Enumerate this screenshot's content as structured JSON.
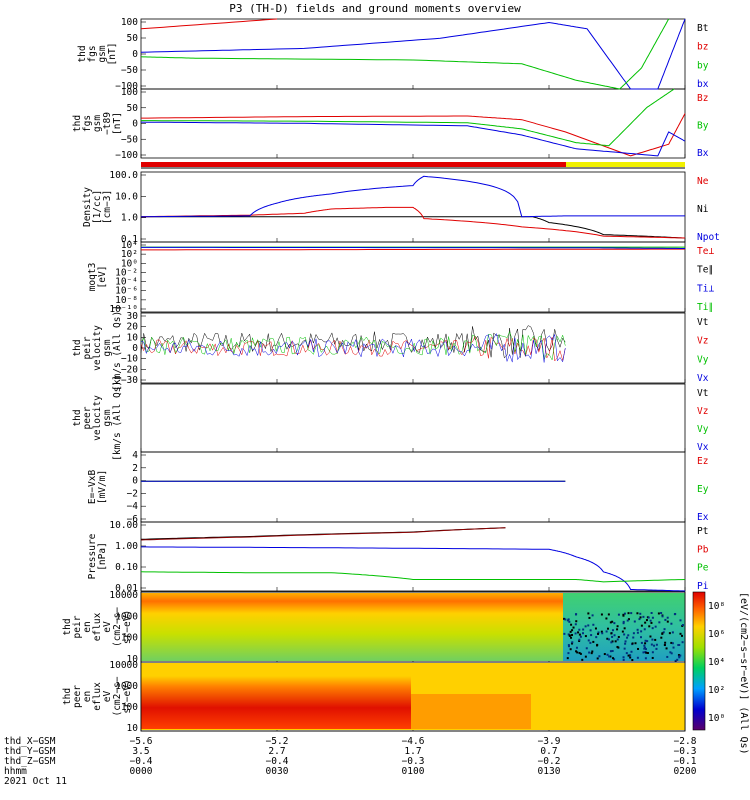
{
  "title": "P3 (TH-D) fields and ground moments overview",
  "panels": [
    {
      "id": "fgs-dsl",
      "ylabel": [
        "thd",
        "fgs",
        "gsm",
        "[nT]"
      ],
      "yticks": [
        "100",
        "50",
        "0",
        "−50",
        "−100"
      ],
      "legend": [
        {
          "t": "Bt",
          "c": "#000000"
        },
        {
          "t": "bz",
          "c": "#e00000"
        },
        {
          "t": "by",
          "c": "#00c000"
        },
        {
          "t": "bx",
          "c": "#0000e0"
        }
      ]
    },
    {
      "id": "fgs-gsm",
      "ylabel": [
        "thd",
        "fgs",
        "gsm",
        "−t89",
        "[nT]"
      ],
      "yticks": [
        "100",
        "50",
        "0",
        "−50",
        "−100"
      ],
      "legend": [
        {
          "t": "Bz",
          "c": "#e00000"
        },
        {
          "t": "By",
          "c": "#00c000"
        },
        {
          "t": "Bx",
          "c": "#0000e0"
        }
      ]
    },
    {
      "id": "density",
      "ylabel": [
        "Density",
        "[1/cc]",
        "[cm−3]"
      ],
      "yticks": [
        "100.0",
        "10.0",
        "1.0",
        "0.1"
      ],
      "legend": [
        {
          "t": "Ne",
          "c": "#e00000"
        },
        {
          "t": "Ni",
          "c": "#000000"
        },
        {
          "t": "Npot",
          "c": "#0000e0"
        }
      ]
    },
    {
      "id": "temperature",
      "ylabel": [
        "moqt3",
        "[eV]"
      ],
      "yticks": [
        "10⁴",
        "10²",
        "10⁰",
        "10⁻²",
        "10⁻⁴",
        "10⁻⁶",
        "10⁻⁸",
        "10⁻¹⁰"
      ],
      "legend": [
        {
          "t": "Te⊥",
          "c": "#e00000"
        },
        {
          "t": "Te∥",
          "c": "#000000"
        },
        {
          "t": "Ti⊥",
          "c": "#0000e0"
        },
        {
          "t": "Ti∥",
          "c": "#00c000"
        }
      ]
    },
    {
      "id": "peir-velocity",
      "ylabel": [
        "thd",
        "peir",
        "velocity",
        "gsm",
        "[km/s (All Qs)]"
      ],
      "yticks": [
        "30",
        "20",
        "10",
        "0",
        "−10",
        "−20",
        "−30"
      ],
      "legend": [
        {
          "t": "Vt",
          "c": "#000000"
        },
        {
          "t": "Vz",
          "c": "#e00000"
        },
        {
          "t": "Vy",
          "c": "#00c000"
        },
        {
          "t": "Vx",
          "c": "#0000e0"
        }
      ]
    },
    {
      "id": "peer-velocity",
      "ylabel": [
        "thd",
        "peer",
        "velocity",
        "gsm",
        "[km/s (All Qs)]"
      ],
      "yticks": [],
      "legend": [
        {
          "t": "Vt",
          "c": "#000000"
        },
        {
          "t": "Vz",
          "c": "#e00000"
        },
        {
          "t": "Vy",
          "c": "#00c000"
        },
        {
          "t": "Vx",
          "c": "#0000e0"
        }
      ]
    },
    {
      "id": "efield",
      "ylabel": [
        "E=−VxB",
        "[mV/m]"
      ],
      "yticks": [
        "4",
        "2",
        "0",
        "−2",
        "−4",
        "−6"
      ],
      "legend": [
        {
          "t": "Ez",
          "c": "#e00000"
        },
        {
          "t": "Ey",
          "c": "#00c000"
        },
        {
          "t": "Ex",
          "c": "#0000e0"
        }
      ]
    },
    {
      "id": "pressure",
      "ylabel": [
        "Pressure",
        "[nPa]"
      ],
      "yticks": [
        "10.00",
        "1.00",
        "0.10",
        "0.01"
      ],
      "legend": [
        {
          "t": "Pt",
          "c": "#000000"
        },
        {
          "t": "Pb",
          "c": "#e00000"
        },
        {
          "t": "Pe",
          "c": "#00c000"
        },
        {
          "t": "Pi",
          "c": "#0000e0"
        }
      ]
    },
    {
      "id": "peir-eflux",
      "ylabel": [
        "thd",
        "peir",
        "en",
        "eflux",
        "eV",
        "(cm2−s−",
        "sr−eV)"
      ],
      "yticks": [
        "10000",
        "1000",
        "100",
        "10"
      ],
      "legend": []
    },
    {
      "id": "peer-eflux",
      "ylabel": [
        "thd",
        "peer",
        "en",
        "eflux",
        "eV",
        "(cm2−s−",
        "sr−eV)"
      ],
      "yticks": [
        "10000",
        "1000",
        "100",
        "10"
      ],
      "legend": []
    }
  ],
  "colorbar": {
    "ticks": [
      "10⁸",
      "10⁶",
      "10⁴",
      "10²",
      "10⁰"
    ],
    "label": "[eV/(cm2−s−sr−eV)] (All Qs)"
  },
  "footer": {
    "row_labels": [
      "thd_X−GSM",
      "thd_Y−GSM",
      "thd_Z−GSM",
      "hhmm",
      "2021 Oct 11"
    ],
    "columns": [
      {
        "x": "−5.6",
        "y": "3.5",
        "z": "−0.4",
        "t": "0000"
      },
      {
        "x": "−5.2",
        "y": "2.7",
        "z": "−0.4",
        "t": "0030"
      },
      {
        "x": "−4.6",
        "y": "1.7",
        "z": "−0.3",
        "t": "0100"
      },
      {
        "x": "−3.9",
        "y": "0.7",
        "z": "−0.2",
        "t": "0130"
      },
      {
        "x": "−2.8",
        "y": "−0.3",
        "z": "−0.1",
        "t": "0200"
      }
    ]
  },
  "chart_data": [
    {
      "type": "line",
      "title": "P3 (TH-D) fields and ground moments overview",
      "x_label": "hhmm",
      "x_ticks": [
        "0000",
        "0030",
        "0100",
        "0130",
        "0200"
      ],
      "ylim": [
        -100,
        100
      ],
      "series": [
        {
          "name": "bz",
          "x": [
            0,
            0.25
          ],
          "y": [
            72,
            100
          ]
        },
        {
          "name": "bx",
          "x": [
            0,
            0.3,
            0.55,
            0.75,
            0.82,
            0.9,
            0.95,
            1.0
          ],
          "y": [
            5,
            16,
            45,
            90,
            72,
            -100,
            -100,
            100
          ]
        },
        {
          "name": "by",
          "x": [
            0,
            0.1,
            0.5,
            0.7,
            0.8,
            0.88,
            0.92,
            0.97
          ],
          "y": [
            -8,
            -12,
            -17,
            -28,
            -75,
            -100,
            -40,
            100
          ]
        }
      ]
    },
    {
      "type": "line",
      "ylim": [
        -125,
        100
      ],
      "series": [
        {
          "name": "Bz",
          "x": [
            0,
            0.3,
            0.6,
            0.7,
            0.78,
            0.9,
            0.97,
            1.0
          ],
          "y": [
            5,
            10,
            12,
            0,
            -40,
            -118,
            -80,
            20
          ]
        },
        {
          "name": "By",
          "x": [
            0,
            0.3,
            0.6,
            0.7,
            0.8,
            0.86,
            0.93,
            0.98
          ],
          "y": [
            -3,
            -5,
            -10,
            -30,
            -75,
            -85,
            40,
            100
          ]
        },
        {
          "name": "Bx",
          "x": [
            0,
            0.3,
            0.6,
            0.7,
            0.8,
            0.95,
            0.97,
            1.0
          ],
          "y": [
            -8,
            -12,
            -20,
            -50,
            -95,
            -118,
            -40,
            -70
          ]
        }
      ]
    },
    {
      "type": "line",
      "ylog": true,
      "ylim": [
        0.05,
        200
      ],
      "series": [
        {
          "name": "Ni",
          "x": [
            0,
            0.5,
            0.72,
            0.75,
            0.85,
            1.0
          ],
          "y": [
            1.0,
            1.0,
            1.0,
            0.5,
            0.12,
            0.08
          ]
        },
        {
          "name": "Ne",
          "x": [
            0,
            0.2,
            0.3,
            0.35,
            0.45,
            0.5,
            0.52,
            0.7,
            0.85,
            1.0
          ],
          "y": [
            1.0,
            1.2,
            1.5,
            2.5,
            3,
            3,
            0.8,
            0.3,
            0.1,
            0.08
          ]
        },
        {
          "name": "Npot",
          "x": [
            0,
            0.2,
            0.25,
            0.3,
            0.35,
            0.5,
            0.52,
            0.7,
            0.78,
            1.0
          ],
          "y": [
            1.0,
            1.1,
            5,
            10,
            15,
            40,
            120,
            1.0,
            1.1,
            1.1
          ]
        }
      ]
    },
    {
      "type": "line",
      "ylog": true,
      "ylim": [
        1e-10,
        100000.0
      ],
      "series": [
        {
          "name": "Te⊥",
          "x": [
            0,
            0.5,
            1.0
          ],
          "y": [
            2000,
            2500,
            3000
          ]
        },
        {
          "name": "Ti∥",
          "x": [
            0,
            1.0
          ],
          "y": [
            8000,
            8000
          ]
        },
        {
          "name": "Ti⊥",
          "x": [
            0,
            0.8,
            1.0
          ],
          "y": [
            7000,
            6000,
            4000
          ]
        }
      ]
    },
    {
      "type": "line",
      "ylim": [
        -30,
        30
      ],
      "series": [
        {
          "name": "Vt",
          "x": [
            0,
            0.78
          ],
          "y": [
            5,
            5
          ]
        },
        {
          "name": "Vz",
          "x": [
            0,
            0.78
          ],
          "y": [
            0,
            0
          ]
        },
        {
          "name": "Vy",
          "x": [
            0,
            0.78
          ],
          "y": [
            2,
            2
          ]
        },
        {
          "name": "Vx",
          "x": [
            0,
            0.78
          ],
          "y": [
            0,
            0
          ]
        }
      ]
    },
    {
      "type": "line",
      "ylim": [
        -7,
        5
      ],
      "series": [
        {
          "name": "Ez",
          "x": [
            0,
            0.78
          ],
          "y": [
            0,
            0
          ]
        },
        {
          "name": "Ey",
          "x": [
            0,
            0.78
          ],
          "y": [
            0,
            0
          ]
        },
        {
          "name": "Ex",
          "x": [
            0,
            0.78
          ],
          "y": [
            0,
            0
          ]
        }
      ]
    },
    {
      "type": "line",
      "ylog": true,
      "ylim": [
        0.005,
        20
      ],
      "series": [
        {
          "name": "Pt",
          "x": [
            0,
            0.2,
            0.5,
            0.67
          ],
          "y": [
            2.5,
            3.5,
            6,
            10
          ]
        },
        {
          "name": "Pb",
          "x": [
            0,
            0.2,
            0.5,
            0.67
          ],
          "y": [
            2.3,
            3.3,
            5.8,
            10
          ]
        },
        {
          "name": "Pi",
          "x": [
            0,
            0.2,
            0.5,
            0.75,
            0.8,
            0.85,
            0.9,
            1.0
          ],
          "y": [
            1.0,
            0.95,
            0.85,
            0.75,
            0.3,
            0.05,
            0.006,
            0.005
          ]
        },
        {
          "name": "Pe",
          "x": [
            0,
            0.2,
            0.35,
            0.5,
            0.8,
            0.85,
            1.0
          ],
          "y": [
            0.05,
            0.045,
            0.045,
            0.02,
            0.02,
            0.015,
            0.02
          ]
        }
      ]
    },
    {
      "type": "heatmap",
      "ylog": true,
      "ylim": [
        7,
        20000
      ],
      "zlog": true,
      "zlim": [
        1,
        100000000.0
      ]
    },
    {
      "type": "heatmap",
      "ylog": true,
      "ylim": [
        7,
        20000
      ],
      "zlog": true,
      "zlim": [
        1,
        100000000.0
      ]
    }
  ]
}
